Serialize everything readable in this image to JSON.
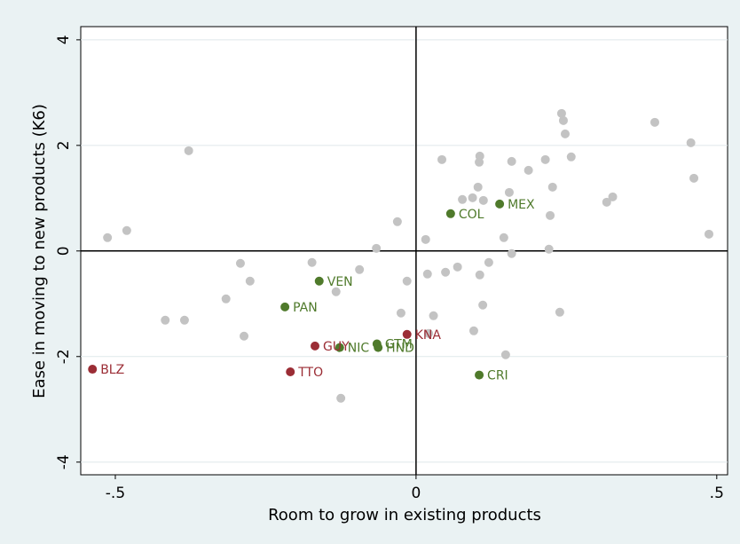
{
  "chart_data": {
    "type": "scatter",
    "x_label": "Room to grow in existing products",
    "y_label": "Ease in moving to new products (K6)",
    "xlim": [
      -0.5575,
      0.518
    ],
    "ylim": [
      -4.24,
      4.25
    ],
    "xticks": [
      {
        "value": -0.5,
        "label": "-.5"
      },
      0,
      {
        "value": 0.5,
        "label": ".5"
      }
    ],
    "yticks": [
      -4,
      -2,
      0,
      2,
      4
    ],
    "grid": true,
    "xline": 0,
    "yline": 0,
    "series": [
      {
        "color": "#c3c3c3",
        "x": [
          -0.513,
          -0.481,
          -0.378,
          -0.417,
          -0.385,
          -0.316,
          -0.292,
          -0.276,
          -0.286,
          -0.173,
          -0.133,
          -0.094,
          -0.125,
          -0.066,
          -0.031,
          -0.025,
          -0.015,
          0.016,
          0.019,
          0.029,
          0.021,
          0.049,
          0.069,
          0.043,
          0.077,
          0.094,
          0.103,
          0.105,
          0.106,
          0.112,
          0.106,
          0.121,
          0.111,
          0.096,
          0.149,
          0.146,
          0.155,
          0.159,
          0.159,
          0.187,
          0.215,
          0.227,
          0.223,
          0.221,
          0.239,
          0.242,
          0.245,
          0.248,
          0.258,
          0.317,
          0.327,
          0.397,
          0.457,
          0.462,
          0.487
        ],
        "values": [
          0.252,
          0.387,
          1.899,
          -1.311,
          -1.311,
          -0.908,
          -0.235,
          -0.571,
          -1.613,
          -0.218,
          -0.773,
          -0.353,
          -2.79,
          0.05,
          0.555,
          -1.176,
          -0.571,
          0.218,
          -0.437,
          -1.227,
          -1.563,
          -0.403,
          -0.303,
          1.731,
          0.975,
          1.008,
          1.21,
          1.681,
          1.798,
          0.958,
          -0.454,
          -0.218,
          -1.025,
          -1.513,
          -1.966,
          0.252,
          1.109,
          1.697,
          -0.05,
          1.529,
          1.731,
          1.21,
          0.672,
          0.034,
          -1.16,
          2.605,
          2.471,
          2.218,
          1.782,
          0.924,
          1.025,
          2.437,
          2.05,
          1.378,
          0.319
        ]
      },
      {
        "color": "#4f7a2b",
        "labels": [
          "COL",
          "MEX",
          "VEN",
          "PAN",
          "NIC",
          "GTM",
          "HND",
          "CRI"
        ],
        "x": [
          0.0575,
          0.139,
          -0.161,
          -0.218,
          -0.127,
          -0.065,
          -0.063,
          0.105
        ],
        "values": [
          0.706,
          0.89,
          -0.571,
          -1.06,
          -1.83,
          -1.76,
          -1.83,
          -2.35
        ]
      },
      {
        "color": "#9b2d35",
        "labels": [
          "BLZ",
          "TTO",
          "GUY",
          "KNA"
        ],
        "x": [
          -0.538,
          -0.209,
          -0.168,
          -0.015
        ],
        "values": [
          -2.24,
          -2.29,
          -1.8,
          -1.58
        ]
      }
    ]
  }
}
